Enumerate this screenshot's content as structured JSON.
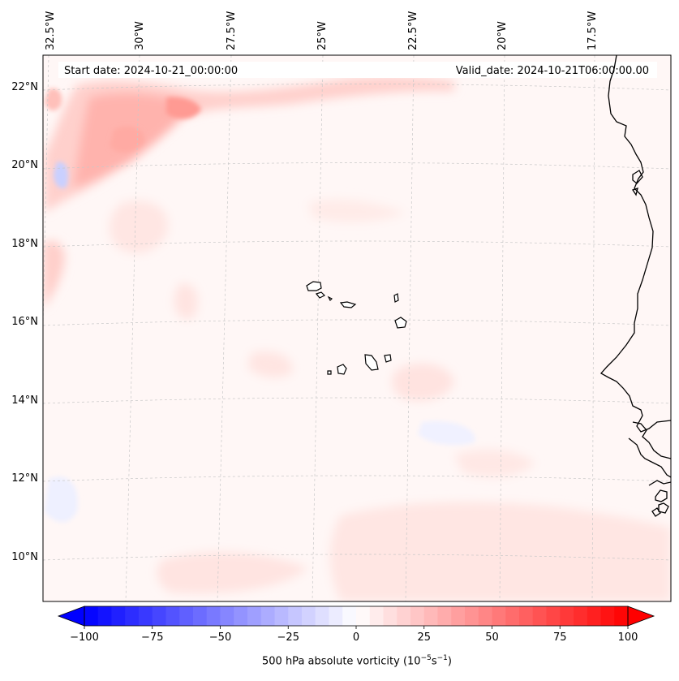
{
  "map": {
    "start_label": "Start date: 2024-10-21_00:00:00",
    "valid_label": "Valid_date: 2024-10-21T06:00:00.00",
    "lon_labels": [
      "32.5°W",
      "30°W",
      "27.5°W",
      "25°W",
      "22.5°W",
      "20°W",
      "17.5°W"
    ],
    "lat_labels": [
      "22°N",
      "20°N",
      "18°N",
      "16°N",
      "14°N",
      "12°N",
      "10°N"
    ],
    "gridlines": true
  },
  "colorbar": {
    "title_main": "500 hPa absolute vorticity (10",
    "title_exp1": "−5",
    "title_mid": "s",
    "title_exp2": "−1",
    "title_end": ")",
    "min": -100,
    "max": 100,
    "tick_labels": [
      "−100",
      "−75",
      "−50",
      "−25",
      "0",
      "25",
      "50",
      "75",
      "100"
    ],
    "colormap": "bwr",
    "extend": "both"
  },
  "colors": {
    "negative": "#0000ff",
    "positive": "#ff0000",
    "neutral": "#ffffff",
    "coast": "#000000",
    "grid": "#cccccc"
  }
}
